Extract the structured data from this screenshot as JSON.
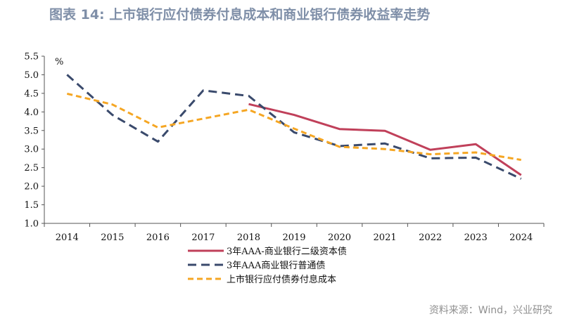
{
  "header": {
    "title": "图表 14: 上市银行应付债券付息成本和商业银行债券收益率走势",
    "source": "资料来源：Wind，兴业研究"
  },
  "chart_data": {
    "type": "line",
    "title": "图表 14: 上市银行应付债券付息成本和商业银行债券收益率走势",
    "ylabel": "%",
    "xlabel": "",
    "ylim": [
      1.0,
      5.5
    ],
    "yticks": [
      "5.5",
      "5.0",
      "4.5",
      "4.0",
      "3.5",
      "3.0",
      "2.5",
      "2.0",
      "1.5",
      "1.0"
    ],
    "categories": [
      "2014",
      "2015",
      "2016",
      "2017",
      "2018",
      "2019",
      "2020",
      "2021",
      "2022",
      "2023",
      "2024"
    ],
    "grid": false,
    "legend": "bottom",
    "series": [
      {
        "name": "3年AAA-商业银行二级资本债",
        "color": "#c0405a",
        "style": "solid",
        "values": [
          null,
          null,
          null,
          null,
          4.21,
          3.92,
          3.54,
          3.49,
          2.98,
          3.13,
          2.3
        ]
      },
      {
        "name": "3年AAA商业银行普通债",
        "color": "#3a4a6c",
        "style": "dashed",
        "values": [
          5.0,
          3.92,
          3.2,
          4.58,
          4.43,
          3.45,
          3.08,
          3.15,
          2.75,
          2.77,
          2.2
        ]
      },
      {
        "name": "上市银行应付债券付息成本",
        "color": "#f5a623",
        "style": "dashed",
        "values": [
          4.49,
          4.2,
          3.58,
          3.82,
          4.06,
          3.55,
          3.06,
          3.0,
          2.86,
          2.91,
          2.71
        ]
      }
    ]
  }
}
